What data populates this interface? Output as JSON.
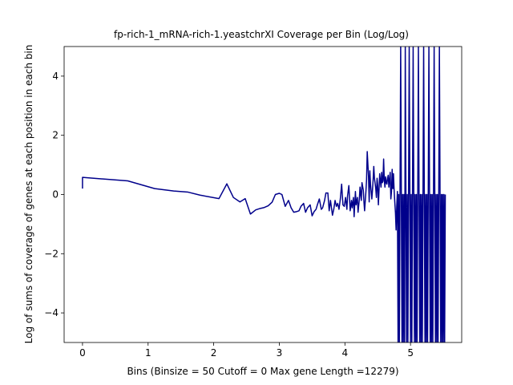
{
  "chart_data": {
    "type": "line",
    "title": "fp-rich-1_mRNA-rich-1.yeastchrXI Coverage per Bin (Log/Log)",
    "xlabel": "Bins  (Binsize = 50 Cutoff = 0 Max gene Length =12279)",
    "ylabel": "Log of sums of coverage of genes at each position in each bin",
    "xlim": [
      -0.28,
      5.78
    ],
    "ylim": [
      -5.0,
      5.0
    ],
    "x_ticks": [
      0,
      1,
      2,
      3,
      4,
      5
    ],
    "y_ticks": [
      -4,
      -2,
      0,
      2,
      4
    ],
    "grid": false,
    "line_color": "#00008b",
    "series": [
      {
        "points": [
          [
            0.0,
            0.2
          ],
          [
            0.0,
            0.58
          ],
          [
            0.69,
            0.46
          ],
          [
            1.1,
            0.2
          ],
          [
            1.39,
            0.12
          ],
          [
            1.61,
            0.08
          ],
          [
            1.79,
            -0.02
          ],
          [
            2.08,
            -0.14
          ],
          [
            2.2,
            0.36
          ],
          [
            2.3,
            -0.1
          ],
          [
            2.4,
            -0.25
          ],
          [
            2.48,
            -0.14
          ],
          [
            2.56,
            -0.66
          ],
          [
            2.64,
            -0.52
          ],
          [
            2.71,
            -0.47
          ],
          [
            2.77,
            -0.44
          ],
          [
            2.83,
            -0.38
          ],
          [
            2.89,
            -0.26
          ],
          [
            2.94,
            0.0
          ],
          [
            3.0,
            0.04
          ],
          [
            3.04,
            0.0
          ],
          [
            3.09,
            -0.4
          ],
          [
            3.14,
            -0.2
          ],
          [
            3.18,
            -0.45
          ],
          [
            3.22,
            -0.6
          ],
          [
            3.26,
            -0.58
          ],
          [
            3.3,
            -0.55
          ],
          [
            3.33,
            -0.4
          ],
          [
            3.37,
            -0.3
          ],
          [
            3.4,
            -0.6
          ],
          [
            3.43,
            -0.45
          ],
          [
            3.47,
            -0.35
          ],
          [
            3.5,
            -0.72
          ],
          [
            3.53,
            -0.58
          ],
          [
            3.56,
            -0.5
          ],
          [
            3.58,
            -0.35
          ],
          [
            3.61,
            -0.15
          ],
          [
            3.64,
            -0.5
          ],
          [
            3.66,
            -0.45
          ],
          [
            3.69,
            -0.2
          ],
          [
            3.71,
            0.05
          ],
          [
            3.74,
            0.05
          ],
          [
            3.76,
            -0.55
          ],
          [
            3.78,
            -0.2
          ],
          [
            3.81,
            -0.7
          ],
          [
            3.83,
            -0.5
          ],
          [
            3.85,
            -0.2
          ],
          [
            3.87,
            -0.4
          ],
          [
            3.89,
            -0.3
          ],
          [
            3.91,
            -0.5
          ],
          [
            3.93,
            -0.15
          ],
          [
            3.95,
            0.35
          ],
          [
            3.97,
            -0.35
          ],
          [
            3.99,
            -0.4
          ],
          [
            4.01,
            -0.1
          ],
          [
            4.03,
            -0.5
          ],
          [
            4.04,
            -0.05
          ],
          [
            4.06,
            0.3
          ],
          [
            4.08,
            -0.55
          ],
          [
            4.1,
            -0.2
          ],
          [
            4.11,
            -0.45
          ],
          [
            4.13,
            -0.1
          ],
          [
            4.14,
            -0.75
          ],
          [
            4.16,
            0.1
          ],
          [
            4.17,
            -0.35
          ],
          [
            4.19,
            -0.1
          ],
          [
            4.2,
            -0.6
          ],
          [
            4.22,
            -0.15
          ],
          [
            4.23,
            0.25
          ],
          [
            4.25,
            -0.2
          ],
          [
            4.26,
            0.4
          ],
          [
            4.28,
            0.15
          ],
          [
            4.29,
            -0.25
          ],
          [
            4.3,
            -0.55
          ],
          [
            4.32,
            0.1
          ],
          [
            4.33,
            0.5
          ],
          [
            4.34,
            1.45
          ],
          [
            4.36,
            0.6
          ],
          [
            4.37,
            -0.25
          ],
          [
            4.38,
            0.8
          ],
          [
            4.39,
            0.35
          ],
          [
            4.41,
            -0.15
          ],
          [
            4.42,
            0.15
          ],
          [
            4.43,
            0.5
          ],
          [
            4.44,
            0.95
          ],
          [
            4.45,
            0.55
          ],
          [
            4.47,
            0.2
          ],
          [
            4.48,
            -0.1
          ],
          [
            4.49,
            0.55
          ],
          [
            4.5,
            0.3
          ],
          [
            4.51,
            -0.35
          ],
          [
            4.52,
            0.15
          ],
          [
            4.53,
            0.7
          ],
          [
            4.55,
            0.25
          ],
          [
            4.56,
            0.75
          ],
          [
            4.57,
            0.4
          ],
          [
            4.58,
            0.45
          ],
          [
            4.59,
            1.2
          ],
          [
            4.6,
            0.5
          ],
          [
            4.61,
            0.25
          ],
          [
            4.62,
            0.6
          ],
          [
            4.63,
            0.4
          ],
          [
            4.64,
            0.35
          ],
          [
            4.65,
            0.55
          ],
          [
            4.66,
            0.65
          ],
          [
            4.67,
            0.25
          ],
          [
            4.68,
            0.5
          ],
          [
            4.69,
            0.75
          ],
          [
            4.7,
            -0.15
          ],
          [
            4.71,
            0.1
          ],
          [
            4.72,
            0.85
          ],
          [
            4.73,
            0.2
          ],
          [
            4.74,
            0.7
          ],
          [
            4.75,
            0.15
          ],
          [
            4.76,
            -0.25
          ],
          [
            4.77,
            -0.6
          ],
          [
            4.78,
            -1.2
          ],
          [
            4.79,
            -0.4
          ],
          [
            4.8,
            0.1
          ],
          [
            4.8,
            0.0
          ],
          [
            4.81,
            -5.0
          ],
          [
            4.82,
            0.0
          ],
          [
            4.83,
            -5.0
          ],
          [
            4.84,
            0.0
          ],
          [
            4.85,
            5.0
          ],
          [
            4.86,
            0.0
          ],
          [
            4.87,
            -5.0
          ],
          [
            4.88,
            0.0
          ],
          [
            4.89,
            -5.0
          ],
          [
            4.9,
            0.0
          ],
          [
            4.91,
            -5.0
          ],
          [
            4.92,
            5.0
          ],
          [
            4.93,
            0.0
          ],
          [
            4.94,
            -5.0
          ],
          [
            4.95,
            0.0
          ],
          [
            4.96,
            -5.0
          ],
          [
            4.97,
            0.0
          ],
          [
            4.98,
            5.0
          ],
          [
            4.99,
            0.0
          ],
          [
            5.0,
            -5.0
          ],
          [
            5.01,
            0.0
          ],
          [
            5.02,
            -5.0
          ],
          [
            5.03,
            0.0
          ],
          [
            5.04,
            5.0
          ],
          [
            5.05,
            0.0
          ],
          [
            5.06,
            -5.0
          ],
          [
            5.07,
            0.0
          ],
          [
            5.08,
            -5.0
          ],
          [
            5.09,
            0.0
          ],
          [
            5.1,
            -5.0
          ],
          [
            5.11,
            0.0
          ],
          [
            5.12,
            5.0
          ],
          [
            5.13,
            0.0
          ],
          [
            5.14,
            -5.0
          ],
          [
            5.15,
            0.0
          ],
          [
            5.16,
            -5.0
          ],
          [
            5.17,
            0.0
          ],
          [
            5.18,
            -5.0
          ],
          [
            5.19,
            0.0
          ],
          [
            5.2,
            5.0
          ],
          [
            5.21,
            0.0
          ],
          [
            5.22,
            -5.0
          ],
          [
            5.23,
            0.0
          ],
          [
            5.24,
            -5.0
          ],
          [
            5.25,
            0.0
          ],
          [
            5.26,
            -5.0
          ],
          [
            5.27,
            0.0
          ],
          [
            5.28,
            5.0
          ],
          [
            5.29,
            0.0
          ],
          [
            5.3,
            -5.0
          ],
          [
            5.31,
            0.0
          ],
          [
            5.32,
            -5.0
          ],
          [
            5.33,
            0.0
          ],
          [
            5.34,
            -5.0
          ],
          [
            5.35,
            0.0
          ],
          [
            5.36,
            5.0
          ],
          [
            5.37,
            0.0
          ],
          [
            5.38,
            -5.0
          ],
          [
            5.39,
            0.0
          ],
          [
            5.4,
            -5.0
          ],
          [
            5.41,
            0.0
          ],
          [
            5.42,
            -5.0
          ],
          [
            5.43,
            0.0
          ],
          [
            5.44,
            5.0
          ],
          [
            5.45,
            0.0
          ],
          [
            5.46,
            -5.0
          ],
          [
            5.47,
            0.0
          ],
          [
            5.48,
            -5.0
          ],
          [
            5.49,
            0.0
          ],
          [
            5.5,
            -5.0
          ],
          [
            5.51,
            0.0
          ],
          [
            5.52,
            -5.0
          ],
          [
            5.53,
            0.0
          ]
        ]
      }
    ]
  }
}
